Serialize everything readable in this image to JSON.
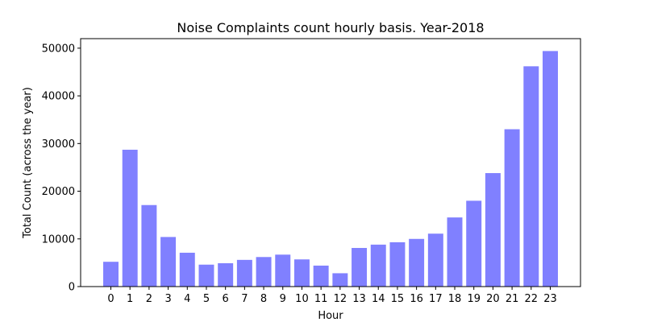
{
  "chart_data": {
    "type": "bar",
    "title": "Noise Complaints count hourly basis. Year-2018",
    "xlabel": "Hour",
    "ylabel": "Total Count (across the year)",
    "categories": [
      "0",
      "1",
      "2",
      "3",
      "4",
      "5",
      "6",
      "7",
      "8",
      "9",
      "10",
      "11",
      "12",
      "13",
      "14",
      "15",
      "16",
      "17",
      "18",
      "19",
      "20",
      "21",
      "22",
      "23"
    ],
    "values": [
      5200,
      28700,
      17100,
      10400,
      7100,
      4600,
      4900,
      5600,
      6200,
      6700,
      5700,
      4400,
      2800,
      8100,
      8800,
      9300,
      10000,
      11100,
      14500,
      18000,
      23800,
      33000,
      46200,
      49400
    ],
    "ylim": [
      0,
      52000
    ],
    "yticks": [
      0,
      10000,
      20000,
      30000,
      40000,
      50000
    ],
    "ytick_labels": [
      "0",
      "10000",
      "20000",
      "30000",
      "40000",
      "50000"
    ],
    "bar_color": "#8080ff",
    "grid": false,
    "legend": "none"
  }
}
